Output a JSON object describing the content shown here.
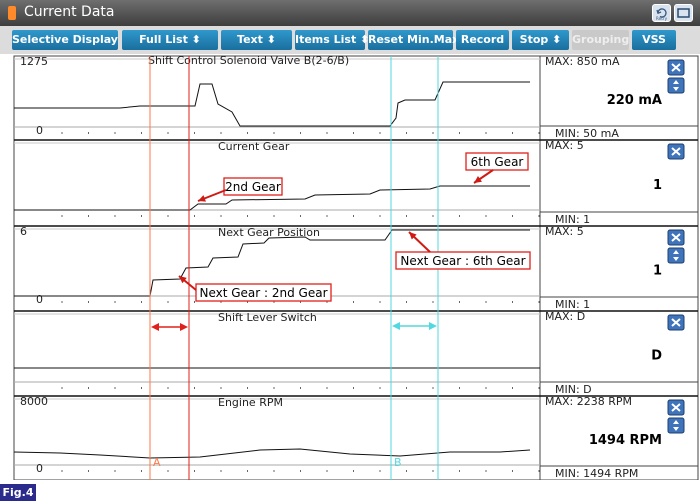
{
  "window": {
    "title": "Current Data",
    "retry_label": "Retry"
  },
  "toolbar": [
    {
      "label": "Selective Display",
      "dropdown": true,
      "enabled": true
    },
    {
      "label": "Full List",
      "dropdown": true,
      "enabled": true
    },
    {
      "label": "Text",
      "dropdown": true,
      "enabled": true
    },
    {
      "label": "Items List",
      "dropdown": true,
      "enabled": true
    },
    {
      "label": "Reset Min.Max",
      "dropdown": false,
      "enabled": true
    },
    {
      "label": "Record",
      "dropdown": false,
      "enabled": true
    },
    {
      "label": "Stop",
      "dropdown": true,
      "enabled": true
    },
    {
      "label": "Grouping",
      "dropdown": false,
      "enabled": false
    },
    {
      "label": "VSS",
      "dropdown": false,
      "enabled": true
    }
  ],
  "panels": [
    {
      "name": "Shift Control Solenoid Valve B(2-6/B)",
      "scale_max": "1275",
      "scale_min": "0",
      "max": "MAX:    850 mA",
      "min": "MIN:    50 mA",
      "current": "220 mA",
      "has_resize": true
    },
    {
      "name": "Current Gear",
      "scale_max": "",
      "scale_min": "",
      "max": "MAX: 5",
      "min": "MIN: 1",
      "current": "1",
      "has_resize": false
    },
    {
      "name": "Next Gear Position",
      "scale_max": "6",
      "scale_min": "0",
      "max": "MAX:      5",
      "min": "MIN:      1",
      "current": "1",
      "has_resize": true
    },
    {
      "name": "Shift Lever Switch",
      "scale_max": "",
      "scale_min": "",
      "max": "MAX: D",
      "min": "MIN: D",
      "current": "D",
      "has_resize": false
    },
    {
      "name": "Engine RPM",
      "scale_max": "8000",
      "scale_min": "0",
      "max": "MAX:  2238 RPM",
      "min": "MIN:  1494 RPM",
      "current": "1494 RPM",
      "has_resize": true
    }
  ],
  "annotations": {
    "second_gear": "2nd Gear",
    "sixth_gear": "6th Gear",
    "next_gear_2nd": "Next Gear : 2nd Gear",
    "next_gear_6th": "Next Gear : 6th Gear"
  },
  "cursors": {
    "a_label": "A",
    "b_label": "B",
    "a_color": "#ff7a4a",
    "b_color": "#52d8e0"
  },
  "colors": {
    "toolbar_button": "#1f7fb5",
    "annotation_red": "#e0201b",
    "close_button": "#3f73ba"
  },
  "figure_label": "Fig.4"
}
